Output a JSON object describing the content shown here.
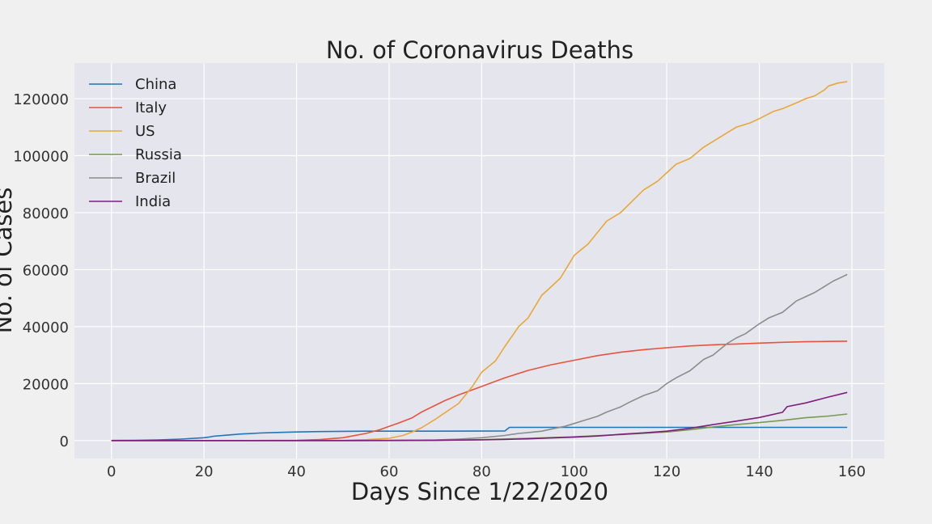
{
  "chart_data": {
    "type": "line",
    "title": "No. of Coronavirus Deaths",
    "xlabel": "Days Since 1/22/2020",
    "ylabel": "No. of Cases",
    "xlim": [
      -8,
      167
    ],
    "ylim": [
      -6300,
      132500
    ],
    "xticks": [
      0,
      20,
      40,
      60,
      80,
      100,
      120,
      140,
      160
    ],
    "yticks": [
      0,
      20000,
      40000,
      60000,
      80000,
      100000,
      120000
    ],
    "grid": true,
    "legend_position": "top-left",
    "colors": {
      "figure_background": "#f0f0f0",
      "plot_background": "#e5e5ee",
      "grid": "#ffffff"
    },
    "series": [
      {
        "name": "China",
        "color": "#1f77b4",
        "points": [
          [
            0,
            17
          ],
          [
            5,
            60
          ],
          [
            10,
            200
          ],
          [
            15,
            500
          ],
          [
            20,
            1000
          ],
          [
            21,
            1200
          ],
          [
            22,
            1500
          ],
          [
            25,
            1900
          ],
          [
            28,
            2300
          ],
          [
            30,
            2450
          ],
          [
            32,
            2650
          ],
          [
            35,
            2800
          ],
          [
            40,
            3000
          ],
          [
            45,
            3150
          ],
          [
            50,
            3250
          ],
          [
            55,
            3280
          ],
          [
            60,
            3290
          ],
          [
            70,
            3300
          ],
          [
            80,
            3330
          ],
          [
            85,
            3340
          ],
          [
            86,
            4640
          ],
          [
            90,
            4640
          ],
          [
            100,
            4640
          ],
          [
            110,
            4640
          ],
          [
            120,
            4640
          ],
          [
            130,
            4640
          ],
          [
            140,
            4640
          ],
          [
            150,
            4640
          ],
          [
            159,
            4640
          ]
        ]
      },
      {
        "name": "Italy",
        "color": "#e8533b",
        "points": [
          [
            0,
            0
          ],
          [
            30,
            0
          ],
          [
            35,
            20
          ],
          [
            40,
            100
          ],
          [
            45,
            350
          ],
          [
            50,
            1000
          ],
          [
            55,
            2500
          ],
          [
            58,
            3800
          ],
          [
            60,
            5000
          ],
          [
            62,
            6100
          ],
          [
            65,
            8000
          ],
          [
            67,
            10000
          ],
          [
            70,
            12400
          ],
          [
            72,
            14000
          ],
          [
            75,
            16000
          ],
          [
            80,
            19000
          ],
          [
            85,
            22000
          ],
          [
            90,
            24600
          ],
          [
            95,
            26600
          ],
          [
            100,
            28200
          ],
          [
            105,
            29800
          ],
          [
            110,
            31000
          ],
          [
            115,
            31900
          ],
          [
            120,
            32600
          ],
          [
            125,
            33200
          ],
          [
            130,
            33600
          ],
          [
            135,
            33900
          ],
          [
            140,
            34200
          ],
          [
            145,
            34500
          ],
          [
            150,
            34700
          ],
          [
            155,
            34800
          ],
          [
            159,
            34900
          ]
        ]
      },
      {
        "name": "US",
        "color": "#e8a838",
        "points": [
          [
            0,
            0
          ],
          [
            40,
            0
          ],
          [
            50,
            50
          ],
          [
            55,
            300
          ],
          [
            60,
            800
          ],
          [
            63,
            1800
          ],
          [
            65,
            3000
          ],
          [
            67,
            4500
          ],
          [
            70,
            7500
          ],
          [
            75,
            13000
          ],
          [
            78,
            19000
          ],
          [
            80,
            24000
          ],
          [
            83,
            28000
          ],
          [
            85,
            33000
          ],
          [
            88,
            40000
          ],
          [
            90,
            43000
          ],
          [
            93,
            51000
          ],
          [
            95,
            54000
          ],
          [
            97,
            57000
          ],
          [
            100,
            65000
          ],
          [
            103,
            69000
          ],
          [
            105,
            73000
          ],
          [
            107,
            77000
          ],
          [
            110,
            80000
          ],
          [
            115,
            88000
          ],
          [
            118,
            91000
          ],
          [
            120,
            94000
          ],
          [
            122,
            97000
          ],
          [
            125,
            99000
          ],
          [
            128,
            103000
          ],
          [
            130,
            105000
          ],
          [
            135,
            110000
          ],
          [
            138,
            111500
          ],
          [
            140,
            113000
          ],
          [
            143,
            115500
          ],
          [
            145,
            116500
          ],
          [
            148,
            118500
          ],
          [
            150,
            120000
          ],
          [
            152,
            121000
          ],
          [
            154,
            123000
          ],
          [
            155,
            124500
          ],
          [
            157,
            125500
          ],
          [
            159,
            126000
          ]
        ]
      },
      {
        "name": "Russia",
        "color": "#7a9a52",
        "points": [
          [
            0,
            0
          ],
          [
            60,
            0
          ],
          [
            70,
            50
          ],
          [
            80,
            300
          ],
          [
            90,
            800
          ],
          [
            100,
            1300
          ],
          [
            110,
            2100
          ],
          [
            120,
            3000
          ],
          [
            125,
            3800
          ],
          [
            130,
            4800
          ],
          [
            135,
            5600
          ],
          [
            140,
            6300
          ],
          [
            145,
            7100
          ],
          [
            150,
            8000
          ],
          [
            155,
            8600
          ],
          [
            159,
            9300
          ]
        ]
      },
      {
        "name": "Brazil",
        "color": "#8c8c8c",
        "points": [
          [
            0,
            0
          ],
          [
            50,
            0
          ],
          [
            60,
            50
          ],
          [
            70,
            200
          ],
          [
            75,
            500
          ],
          [
            80,
            1000
          ],
          [
            85,
            1800
          ],
          [
            88,
            2500
          ],
          [
            90,
            2800
          ],
          [
            93,
            3300
          ],
          [
            95,
            4000
          ],
          [
            98,
            5000
          ],
          [
            100,
            6000
          ],
          [
            102,
            7000
          ],
          [
            105,
            8500
          ],
          [
            107,
            10000
          ],
          [
            110,
            11800
          ],
          [
            112,
            13500
          ],
          [
            115,
            15800
          ],
          [
            118,
            17500
          ],
          [
            120,
            20000
          ],
          [
            122,
            22000
          ],
          [
            125,
            24500
          ],
          [
            128,
            28500
          ],
          [
            130,
            30000
          ],
          [
            133,
            34000
          ],
          [
            135,
            36000
          ],
          [
            137,
            37500
          ],
          [
            140,
            41000
          ],
          [
            142,
            43000
          ],
          [
            145,
            45000
          ],
          [
            148,
            49000
          ],
          [
            150,
            50500
          ],
          [
            152,
            52000
          ],
          [
            154,
            54000
          ],
          [
            156,
            56000
          ],
          [
            158,
            57500
          ],
          [
            159,
            58300
          ]
        ]
      },
      {
        "name": "India",
        "color": "#7b1f7b",
        "points": [
          [
            0,
            0
          ],
          [
            50,
            0
          ],
          [
            60,
            30
          ],
          [
            70,
            100
          ],
          [
            80,
            250
          ],
          [
            85,
            400
          ],
          [
            90,
            600
          ],
          [
            95,
            900
          ],
          [
            100,
            1200
          ],
          [
            105,
            1600
          ],
          [
            110,
            2200
          ],
          [
            115,
            2700
          ],
          [
            120,
            3300
          ],
          [
            125,
            4300
          ],
          [
            130,
            5600
          ],
          [
            135,
            6800
          ],
          [
            140,
            8100
          ],
          [
            145,
            9900
          ],
          [
            146,
            11900
          ],
          [
            150,
            13200
          ],
          [
            155,
            15300
          ],
          [
            159,
            16900
          ]
        ]
      }
    ]
  }
}
